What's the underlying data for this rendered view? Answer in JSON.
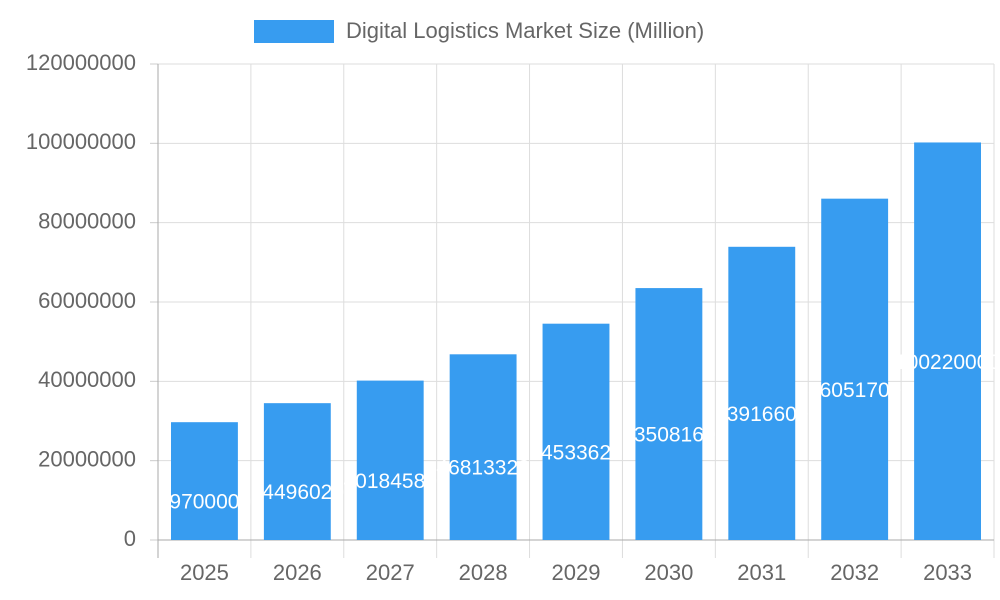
{
  "chart_data": {
    "type": "bar",
    "categories": [
      "2025",
      "2026",
      "2027",
      "2028",
      "2029",
      "2030",
      "2031",
      "2032",
      "2033"
    ],
    "series": [
      {
        "name": "Digital Logistics Market Size (Million)",
        "color": "#379cf0",
        "values": [
          29700000,
          34496020,
          40184580,
          46813320,
          54533620,
          63508160,
          73916600,
          86051700,
          100220000
        ]
      }
    ],
    "ylim": [
      0,
      120000000
    ],
    "yticks": [
      0,
      20000000,
      40000000,
      60000000,
      80000000,
      100000000,
      120000000
    ],
    "grid": true,
    "legend": "top"
  }
}
